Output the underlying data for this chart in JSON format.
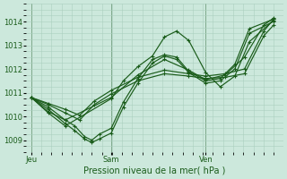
{
  "title": "Pression niveau de la mer( hPa )",
  "background_color": "#cce8dc",
  "grid_color": "#aacfbf",
  "line_color": "#1a5c1a",
  "ylim": [
    1008.5,
    1014.7
  ],
  "yticks": [
    1009,
    1010,
    1011,
    1012,
    1013,
    1014
  ],
  "xtick_labels": [
    "Jeu",
    "Sam",
    "Ven"
  ],
  "xtick_positions": [
    0.0,
    0.33,
    0.72
  ],
  "lines": [
    {
      "x": [
        0.0,
        0.07,
        0.14,
        0.18,
        0.22,
        0.25,
        0.28,
        0.33,
        0.38,
        0.44,
        0.5,
        0.55,
        0.6,
        0.65,
        0.72,
        0.78,
        0.84,
        0.9,
        1.0
      ],
      "y": [
        1010.8,
        1010.4,
        1009.85,
        1009.6,
        1009.15,
        1009.0,
        1009.25,
        1009.5,
        1010.6,
        1011.6,
        1012.4,
        1012.6,
        1012.5,
        1011.9,
        1011.5,
        1011.6,
        1012.2,
        1013.7,
        1014.1
      ]
    },
    {
      "x": [
        0.0,
        0.07,
        0.14,
        0.18,
        0.22,
        0.25,
        0.28,
        0.33,
        0.38,
        0.44,
        0.5,
        0.55,
        0.6,
        0.65,
        0.72,
        0.78,
        0.84,
        0.9,
        1.0
      ],
      "y": [
        1010.8,
        1010.3,
        1009.7,
        1009.4,
        1009.05,
        1008.9,
        1009.05,
        1009.3,
        1010.4,
        1011.4,
        1012.25,
        1012.55,
        1012.4,
        1011.85,
        1011.4,
        1011.5,
        1012.0,
        1013.5,
        1014.0
      ]
    },
    {
      "x": [
        0.0,
        0.07,
        0.14,
        0.33,
        0.38,
        0.44,
        0.5,
        0.55,
        0.6,
        0.65,
        0.72,
        0.78,
        0.84,
        0.9,
        1.0
      ],
      "y": [
        1010.8,
        1010.15,
        1009.6,
        1010.75,
        1011.5,
        1012.1,
        1012.55,
        1013.35,
        1013.6,
        1013.2,
        1011.85,
        1011.25,
        1011.7,
        1013.15,
        1014.05
      ]
    },
    {
      "x": [
        0.0,
        0.07,
        0.14,
        0.33,
        0.44,
        0.55,
        0.65,
        0.72,
        0.8,
        0.88,
        0.96,
        1.0
      ],
      "y": [
        1010.8,
        1010.2,
        1009.85,
        1010.8,
        1011.75,
        1012.4,
        1011.95,
        1011.55,
        1011.75,
        1012.5,
        1013.85,
        1014.15
      ]
    },
    {
      "x": [
        0.0,
        0.07,
        0.14,
        0.2,
        0.26,
        0.33,
        0.44,
        0.55,
        0.65,
        0.72,
        0.8,
        0.88,
        0.96,
        1.0
      ],
      "y": [
        1010.8,
        1010.5,
        1010.15,
        1009.85,
        1010.5,
        1010.95,
        1011.5,
        1011.8,
        1011.7,
        1011.6,
        1011.65,
        1011.8,
        1013.4,
        1013.85
      ]
    },
    {
      "x": [
        0.0,
        0.07,
        0.14,
        0.2,
        0.26,
        0.33,
        0.44,
        0.55,
        0.65,
        0.72,
        0.8,
        0.88,
        0.96,
        1.0
      ],
      "y": [
        1010.8,
        1010.55,
        1010.3,
        1010.05,
        1010.65,
        1011.1,
        1011.65,
        1011.95,
        1011.8,
        1011.7,
        1011.8,
        1012.0,
        1013.6,
        1014.1
      ]
    }
  ]
}
